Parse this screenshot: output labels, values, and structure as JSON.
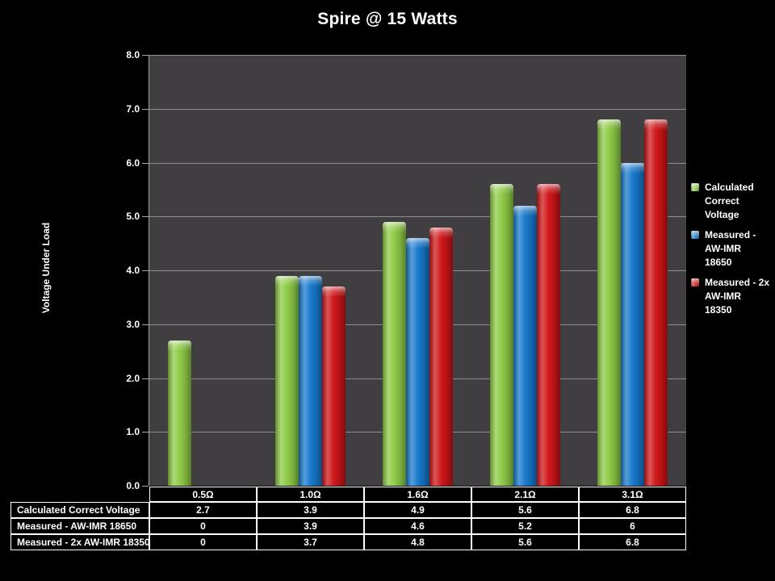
{
  "chart_data": {
    "type": "bar",
    "title": "Spire @ 15 Watts",
    "ylabel": "Voltage Under Load",
    "xlabel": "",
    "ylim": [
      0,
      8
    ],
    "ytick_interval": 1.0,
    "ytick_labels": [
      "0.0",
      "1.0",
      "2.0",
      "3.0",
      "4.0",
      "5.0",
      "6.0",
      "7.0",
      "8.0"
    ],
    "grid": true,
    "legend_position": "right",
    "data_table_shown": true,
    "categories": [
      "0.5Ω",
      "1.0Ω",
      "1.6Ω",
      "2.1Ω",
      "3.1Ω"
    ],
    "series": [
      {
        "name": "Calculated Correct Voltage",
        "color": "#8ecb45",
        "values": [
          2.7,
          3.9,
          4.9,
          5.6,
          6.8
        ],
        "display": [
          "2.7",
          "3.9",
          "4.9",
          "5.6",
          "6.8"
        ]
      },
      {
        "name": "Measured - AW-IMR 18650",
        "color": "#1779cd",
        "values": [
          0,
          3.9,
          4.6,
          5.2,
          6
        ],
        "display": [
          "0",
          "3.9",
          "4.6",
          "5.2",
          "6"
        ]
      },
      {
        "name": "Measured - 2x AW-IMR 18350",
        "color": "#cf1517",
        "values": [
          0,
          3.7,
          4.8,
          5.6,
          6.8
        ],
        "display": [
          "0",
          "3.7",
          "4.8",
          "5.6",
          "6.8"
        ]
      }
    ],
    "legend_lines": [
      [
        "Calculated",
        "Correct",
        "Voltage"
      ],
      [
        "Measured -",
        "AW-IMR",
        "18650"
      ],
      [
        "Measured - 2x",
        "AW-IMR",
        "18350"
      ]
    ],
    "colors": {
      "background": "#000000",
      "plot_background": "#403e40",
      "gridline": "#8f8f8f",
      "axis": "#a6a6a6",
      "text": "#ffffff",
      "table_border": "#ffffff"
    }
  }
}
